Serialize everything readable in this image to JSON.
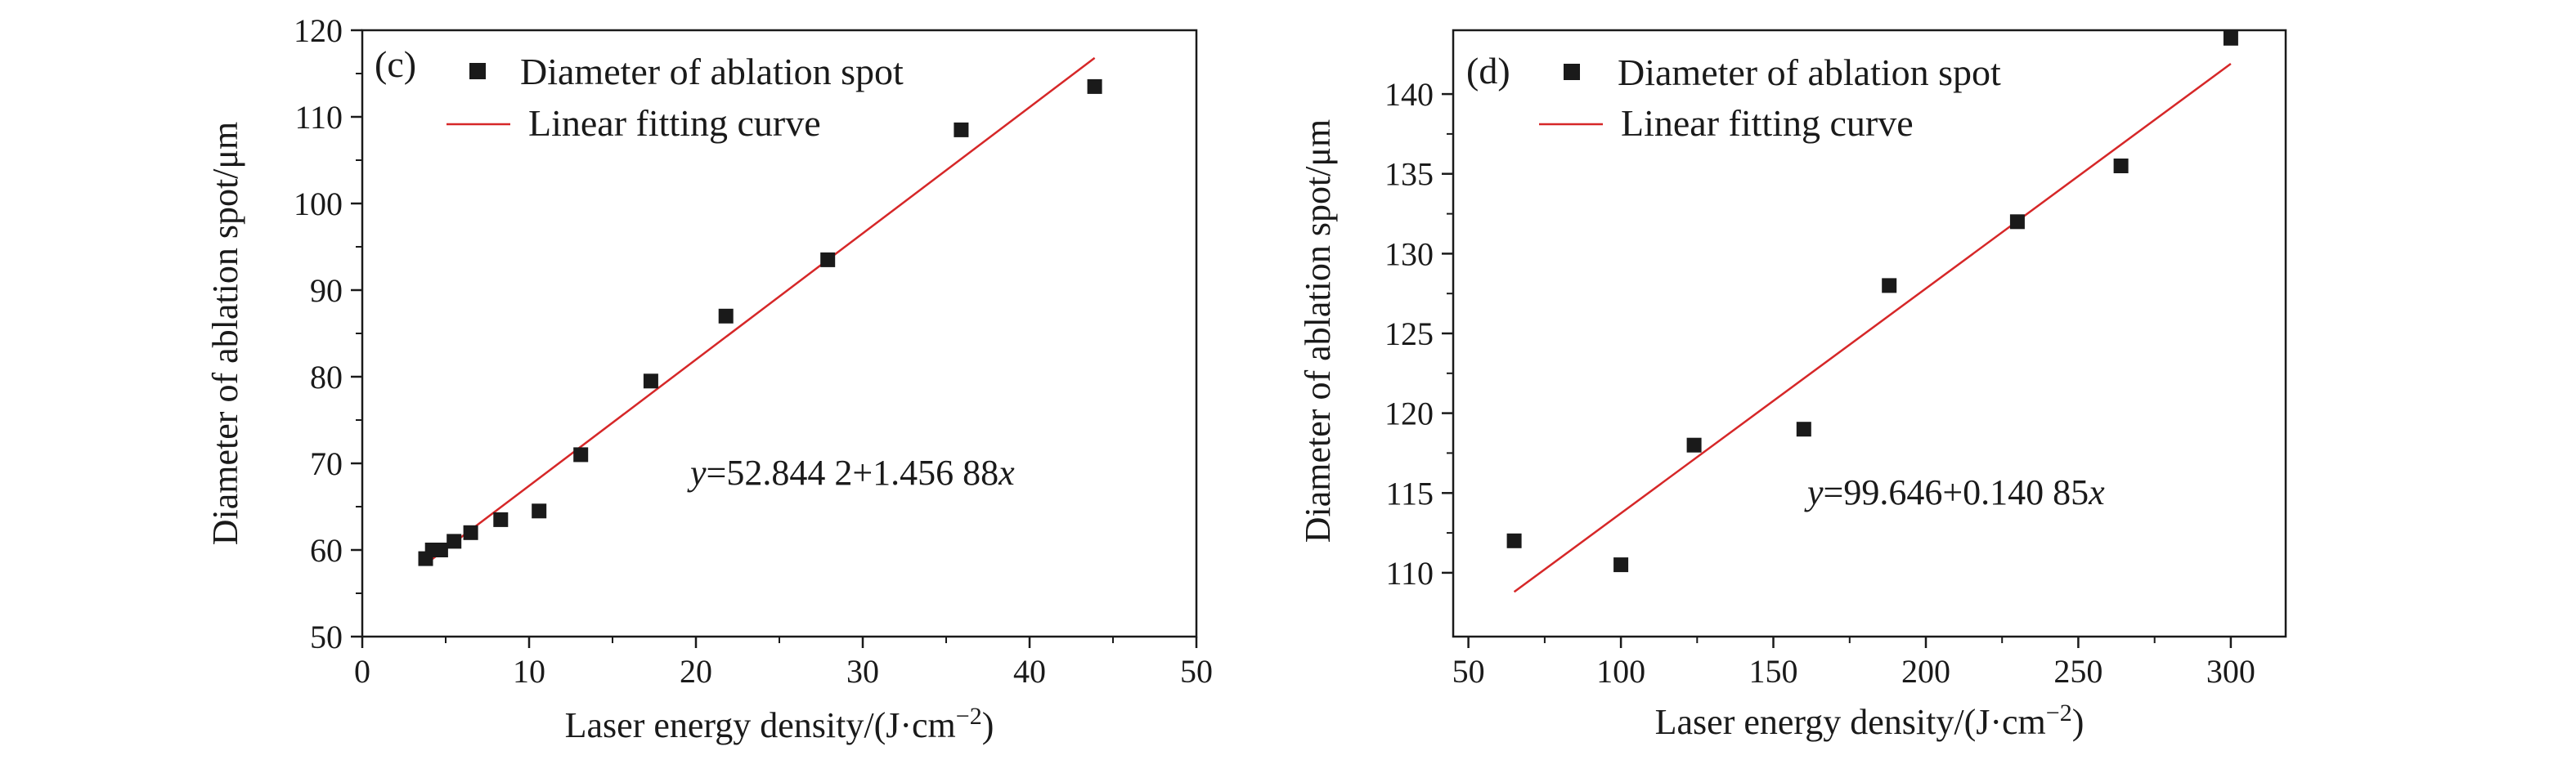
{
  "figure": {
    "colors": {
      "axis": "#1a1a1a",
      "marker": "#1a1a1a",
      "fit": "#d62728",
      "background": "#ffffff"
    }
  },
  "chart_data": [
    {
      "type": "scatter",
      "panel_label": "(c)",
      "xlabel_main": "Laser energy density/(J·cm",
      "xlabel_sup": "−2",
      "xlabel_close": ")",
      "ylabel": "Diameter of ablation spot/μm",
      "xlim": [
        0,
        50
      ],
      "ylim": [
        50,
        120
      ],
      "xticks": [
        0,
        10,
        20,
        30,
        40,
        50
      ],
      "yticks": [
        50,
        60,
        70,
        80,
        90,
        100,
        110,
        120
      ],
      "xtick_labels": [
        "0",
        "10",
        "20",
        "30",
        "40",
        "50"
      ],
      "ytick_labels": [
        "50",
        "60",
        "70",
        "80",
        "90",
        "100",
        "110",
        "120"
      ],
      "legend_position": "top-left",
      "series": [
        {
          "name": "Diameter of ablation spot",
          "kind": "markers",
          "x": [
            3.8,
            4.2,
            4.7,
            5.5,
            6.5,
            8.3,
            10.6,
            13.1,
            17.3,
            21.8,
            27.9,
            35.9,
            43.9
          ],
          "y": [
            59.0,
            60.0,
            60.0,
            61.0,
            62.0,
            63.5,
            64.5,
            71.0,
            79.5,
            87.0,
            93.5,
            108.5,
            113.5
          ]
        },
        {
          "name": "Linear fitting curve",
          "kind": "line",
          "x": [
            3.8,
            43.9
          ],
          "y": [
            58.38,
            116.8
          ]
        }
      ],
      "annotation": {
        "var_y": "y",
        "text": "=52.844 2+1.456 88",
        "var_x": "x"
      }
    },
    {
      "type": "scatter",
      "panel_label": "(d)",
      "xlabel_main": "Laser energy density/(J·cm",
      "xlabel_sup": "−2",
      "xlabel_close": ")",
      "ylabel": "Diameter of ablation spot/μm",
      "xlim": [
        45,
        318
      ],
      "ylim": [
        106,
        144
      ],
      "xticks": [
        50,
        100,
        150,
        200,
        250,
        300
      ],
      "yticks": [
        110,
        115,
        120,
        125,
        130,
        135,
        140
      ],
      "xtick_labels": [
        "50",
        "100",
        "150",
        "200",
        "250",
        "300"
      ],
      "ytick_labels": [
        "110",
        "115",
        "120",
        "125",
        "130",
        "135",
        "140"
      ],
      "legend_position": "top-left",
      "series": [
        {
          "name": "Diameter of ablation spot",
          "kind": "markers",
          "x": [
            65,
            100,
            124,
            160,
            188,
            230,
            264,
            300
          ],
          "y": [
            112.0,
            110.5,
            118.0,
            119.0,
            128.0,
            132.0,
            135.5,
            143.5
          ]
        },
        {
          "name": "Linear fitting curve",
          "kind": "line",
          "x": [
            65,
            300
          ],
          "y": [
            108.8,
            141.9
          ]
        }
      ],
      "annotation": {
        "var_y": "y",
        "text": "=99.646+0.140 85",
        "var_x": "x"
      }
    }
  ]
}
